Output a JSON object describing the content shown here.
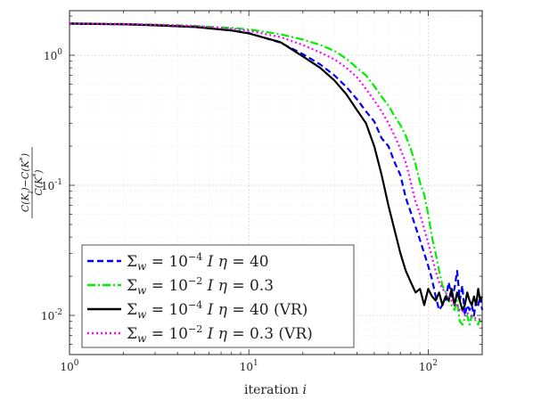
{
  "chart_data": {
    "type": "line",
    "xscale": "log",
    "yscale": "log",
    "xlim": [
      1,
      200
    ],
    "ylim": [
      0.005,
      2.2
    ],
    "grid": true,
    "legend_position": "bottom-left",
    "xlabel": "iteration i",
    "ylabel": "(C(K_i) − C(K*)) / C(K*)",
    "x_ticks": [
      {
        "value": 1,
        "base": "10",
        "exp": "0"
      },
      {
        "value": 10,
        "base": "10",
        "exp": "1"
      },
      {
        "value": 100,
        "base": "10",
        "exp": "2"
      }
    ],
    "y_ticks": [
      {
        "value": 0.01,
        "base": "10",
        "exp": "-2"
      },
      {
        "value": 0.1,
        "base": "10",
        "exp": "-1"
      },
      {
        "value": 1,
        "base": "10",
        "exp": "0"
      }
    ],
    "series": [
      {
        "name": "Σw = 10⁻⁴ I  η = 40",
        "label_parts": {
          "sub": "w",
          "exp": "−4",
          "eta": "40",
          "suffix": ""
        },
        "color": "#0000ff",
        "style": "dashed",
        "x": [
          1,
          2,
          3,
          5,
          8,
          10,
          15,
          20,
          25,
          30,
          35,
          40,
          45,
          50,
          55,
          60,
          65,
          70,
          75,
          80,
          85,
          90,
          95,
          100,
          105,
          110,
          115,
          120,
          125,
          130,
          135,
          140,
          145,
          150,
          155,
          160,
          165,
          170,
          175,
          180,
          185,
          190,
          195,
          200
        ],
        "y": [
          1.75,
          1.73,
          1.7,
          1.65,
          1.55,
          1.48,
          1.25,
          1.02,
          0.85,
          0.7,
          0.57,
          0.46,
          0.37,
          0.31,
          0.23,
          0.2,
          0.15,
          0.12,
          0.08,
          0.062,
          0.048,
          0.038,
          0.03,
          0.024,
          0.019,
          0.014,
          0.011,
          0.012,
          0.013,
          0.018,
          0.014,
          0.016,
          0.022,
          0.013,
          0.017,
          0.01,
          0.012,
          0.011,
          0.012,
          0.01,
          0.013,
          0.012,
          0.014,
          0.011
        ]
      },
      {
        "name": "Σw = 10⁻² I  η = 0.3",
        "label_parts": {
          "sub": "w",
          "exp": "−2",
          "eta": "0.3",
          "suffix": ""
        },
        "color": "#00ee00",
        "style": "dashdot",
        "x": [
          1,
          2,
          3,
          5,
          8,
          10,
          15,
          20,
          25,
          30,
          35,
          40,
          45,
          50,
          55,
          60,
          65,
          70,
          75,
          80,
          85,
          90,
          95,
          100,
          105,
          110,
          115,
          120,
          125,
          130,
          135,
          140,
          145,
          150,
          155,
          160,
          165,
          170,
          175,
          180,
          185,
          190,
          195,
          200
        ],
        "y": [
          1.76,
          1.74,
          1.72,
          1.68,
          1.62,
          1.58,
          1.45,
          1.32,
          1.2,
          1.08,
          0.94,
          0.8,
          0.7,
          0.58,
          0.48,
          0.41,
          0.34,
          0.29,
          0.24,
          0.19,
          0.145,
          0.105,
          0.085,
          0.06,
          0.04,
          0.03,
          0.022,
          0.017,
          0.015,
          0.013,
          0.012,
          0.011,
          0.013,
          0.009,
          0.0085,
          0.0095,
          0.01,
          0.0085,
          0.01,
          0.0095,
          0.009,
          0.0085,
          0.0095,
          0.0085
        ]
      },
      {
        "name": "Σw = 10⁻⁴ I  η = 40 (VR)",
        "label_parts": {
          "sub": "w",
          "exp": "−4",
          "eta": "40",
          "suffix": "(VR)"
        },
        "color": "#000000",
        "style": "solid",
        "x": [
          1,
          2,
          3,
          5,
          8,
          10,
          15,
          20,
          25,
          30,
          35,
          40,
          45,
          50,
          55,
          60,
          65,
          70,
          75,
          80,
          85,
          90,
          95,
          100,
          105,
          110,
          115,
          120,
          125,
          130,
          135,
          140,
          145,
          150,
          155,
          160,
          165,
          170,
          175,
          180,
          185,
          190,
          195,
          200
        ],
        "y": [
          1.75,
          1.73,
          1.7,
          1.65,
          1.55,
          1.47,
          1.26,
          0.98,
          0.8,
          0.64,
          0.5,
          0.38,
          0.3,
          0.2,
          0.12,
          0.07,
          0.045,
          0.03,
          0.022,
          0.018,
          0.015,
          0.016,
          0.012,
          0.016,
          0.014,
          0.013,
          0.015,
          0.012,
          0.014,
          0.013,
          0.016,
          0.012,
          0.015,
          0.013,
          0.011,
          0.012,
          0.015,
          0.013,
          0.012,
          0.014,
          0.012,
          0.016,
          0.013,
          0.014
        ]
      },
      {
        "name": "Σw = 10⁻² I  η = 0.3 (VR)",
        "label_parts": {
          "sub": "w",
          "exp": "−2",
          "eta": "0.3",
          "suffix": "(VR)"
        },
        "color": "#ff00ff",
        "style": "dotted",
        "x": [
          1,
          2,
          3,
          5,
          8,
          10,
          15,
          20,
          25,
          30,
          35,
          40,
          45,
          50,
          55,
          60,
          65,
          70,
          75,
          80,
          85,
          90,
          95,
          100,
          105,
          110,
          115,
          120,
          125,
          130,
          135,
          140,
          145,
          150,
          155,
          160,
          165,
          170,
          175,
          180,
          185,
          190,
          195,
          200
        ],
        "y": [
          1.76,
          1.74,
          1.72,
          1.68,
          1.6,
          1.54,
          1.38,
          1.2,
          1.05,
          0.93,
          0.8,
          0.68,
          0.55,
          0.45,
          0.37,
          0.3,
          0.24,
          0.19,
          0.15,
          0.105,
          0.075,
          0.06,
          0.046,
          0.036,
          0.028,
          0.022,
          0.018,
          0.016,
          0.015,
          0.014,
          0.013,
          0.012,
          0.012,
          0.011,
          0.011,
          0.01,
          0.0105,
          0.01,
          0.0098,
          0.0096,
          0.0095,
          0.0094,
          0.0093,
          0.0092
        ]
      }
    ]
  }
}
